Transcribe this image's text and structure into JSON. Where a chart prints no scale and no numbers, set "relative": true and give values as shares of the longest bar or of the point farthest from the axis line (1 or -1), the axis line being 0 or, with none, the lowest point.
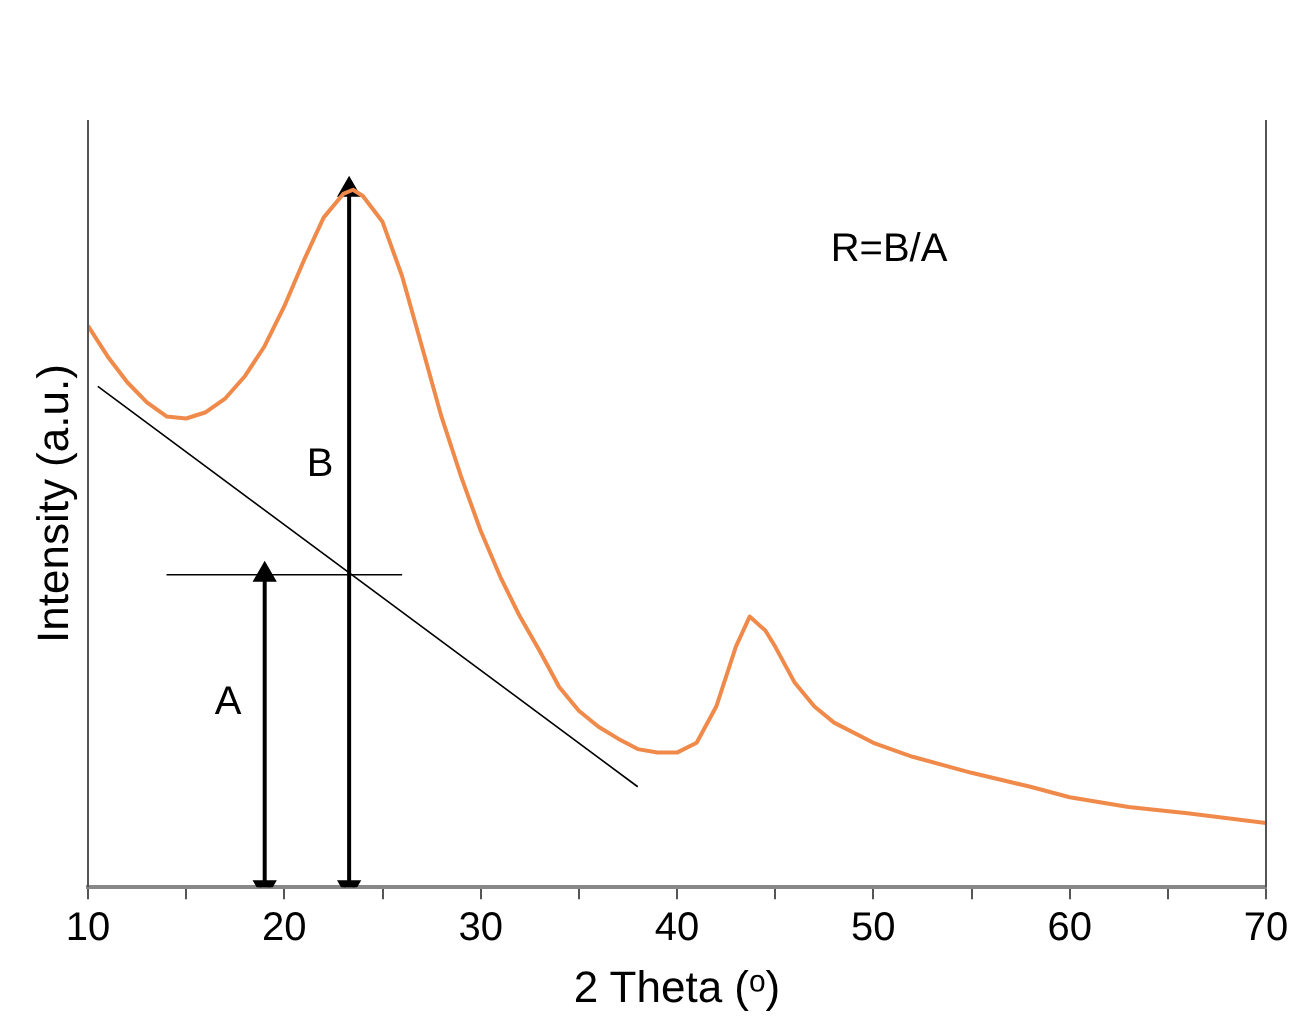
{
  "chart_data": {
    "type": "line",
    "relative": true,
    "xlabel": "2 Theta (ᵒ)",
    "ylabel": "Intensity (a.u.)",
    "xlim": [
      10,
      70
    ],
    "xticks": [
      10,
      {
        "value": 15,
        "label": null
      },
      20,
      {
        "value": 25,
        "label": null
      },
      30,
      {
        "value": 35,
        "label": null
      },
      40,
      {
        "value": 45,
        "label": null
      },
      50,
      {
        "value": 55,
        "label": null
      },
      60,
      {
        "value": 65,
        "label": null
      },
      70
    ],
    "grid": false,
    "legend": false,
    "marker": "none",
    "line_style": "solid",
    "series": [
      {
        "color": "#f08a4b",
        "x": [
          10,
          11,
          12,
          13,
          14,
          15,
          16,
          17,
          18,
          19,
          20,
          21,
          22,
          23,
          23.5,
          24,
          25,
          26,
          27,
          28,
          29,
          30,
          31,
          32,
          33,
          34,
          35,
          36,
          37,
          38,
          39,
          40,
          41,
          42,
          43,
          43.7,
          44.5,
          45,
          46,
          47,
          48,
          50,
          52,
          55,
          58,
          60,
          63,
          66,
          70
        ],
        "values": [
          0.805,
          0.761,
          0.724,
          0.695,
          0.675,
          0.672,
          0.681,
          0.701,
          0.733,
          0.776,
          0.833,
          0.899,
          0.96,
          0.994,
          1,
          0.991,
          0.954,
          0.876,
          0.776,
          0.675,
          0.589,
          0.511,
          0.445,
          0.388,
          0.339,
          0.287,
          0.253,
          0.23,
          0.213,
          0.198,
          0.193,
          0.193,
          0.207,
          0.259,
          0.345,
          0.388,
          0.368,
          0.345,
          0.293,
          0.259,
          0.236,
          0.207,
          0.187,
          0.164,
          0.144,
          0.129,
          0.115,
          0.106,
          0.092
        ]
      },
      {
        "color": "#000000",
        "x": [
          10.5,
          38
        ],
        "values": [
          0.718,
          0.144
        ]
      },
      {
        "color": "#000000",
        "x": [
          14,
          26
        ],
        "values": [
          0.448,
          0.448
        ]
      },
      {
        "color": "#000000",
        "marker": "triangle",
        "x": [
          19,
          19
        ],
        "values": [
          0,
          0.448
        ]
      },
      {
        "color": "#000000",
        "marker": "triangle",
        "x": [
          23.3,
          23.3
        ],
        "values": [
          0,
          1
        ]
      }
    ],
    "annotations": [
      "B",
      "A",
      "R=B/A"
    ]
  }
}
